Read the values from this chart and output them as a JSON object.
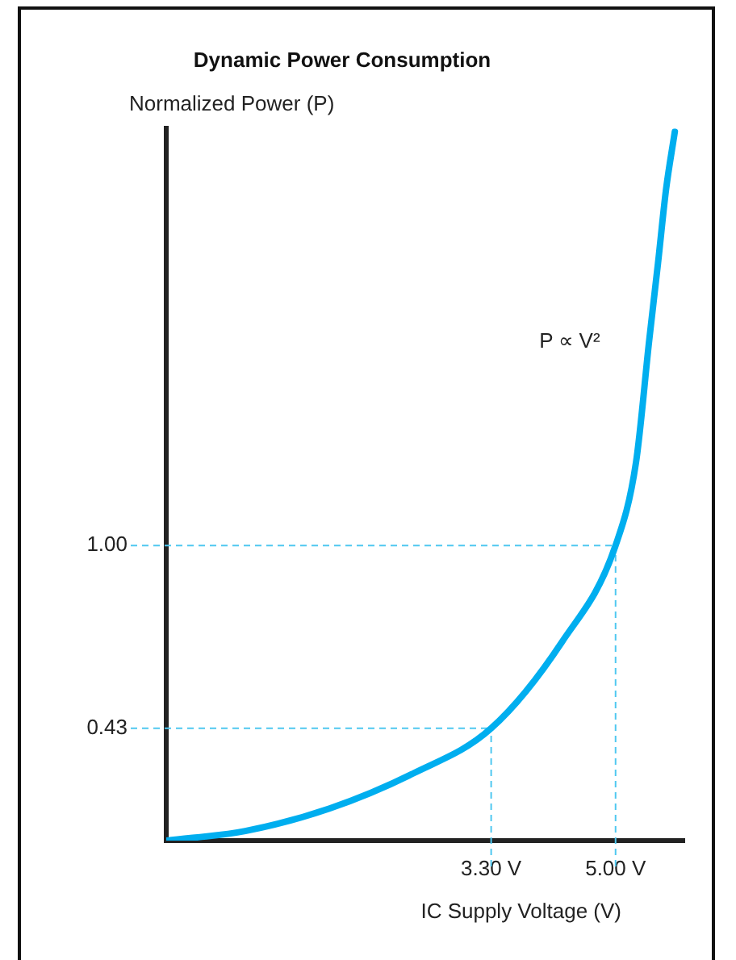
{
  "chart_data": {
    "type": "line",
    "title": "Dynamic Power Consumption",
    "xlabel": "IC Supply Voltage (V)",
    "ylabel": "Normalized Power (P)",
    "series": [
      {
        "color": "#00aeef",
        "x": [
          -1.14,
          -0.06,
          1.09,
          2.24,
          3.3,
          4.27,
          5.0,
          5.28,
          5.46,
          5.58,
          5.69,
          5.81
        ],
        "values": [
          0.08,
          0.11,
          0.18,
          0.29,
          0.43,
          0.7,
          1.0,
          1.26,
          1.64,
          1.88,
          2.11,
          2.29
        ]
      }
    ],
    "xlim": [
      -1.14,
      5.94
    ],
    "xticks": [
      {
        "value": 3.3,
        "label": "3.30 V"
      },
      {
        "value": 5,
        "label": "5.00 V"
      }
    ],
    "ylim": [
      0.08,
      2.3
    ],
    "yticks": [
      0.43,
      {
        "value": 1,
        "label": "1.00"
      }
    ],
    "ref_lines": [
      {
        "axis": "y",
        "value": 0.43,
        "color": "#4fc8f0",
        "line_style": "dashed"
      },
      {
        "axis": "y",
        "value": 1,
        "color": "#4fc8f0",
        "line_style": "dashed"
      },
      {
        "axis": "x",
        "value": 3.3,
        "color": "#4fc8f0",
        "line_style": "dashed"
      },
      {
        "axis": "x",
        "value": 5,
        "color": "#4fc8f0",
        "line_style": "dashed"
      }
    ],
    "annotations": [
      "P ∝ V²"
    ],
    "grid": false,
    "legend": false,
    "marker": "none",
    "line_style": "solid"
  }
}
